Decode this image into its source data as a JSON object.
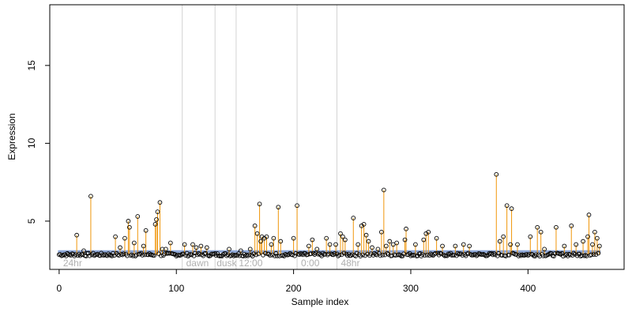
{
  "chart_data": {
    "type": "scatter",
    "xlabel": "Sample index",
    "ylabel": "Expression",
    "xlim": [
      -8,
      482
    ],
    "ylim": [
      1.9,
      18.9
    ],
    "x_ticks": [
      0,
      100,
      200,
      300,
      400
    ],
    "y_ticks": [
      5,
      10,
      15
    ],
    "baseline": 2.85,
    "threshold": 3.05,
    "colors": {
      "baseline_band": "#8fa8d8",
      "spike": "#f0960a",
      "boundary": "#d3d3d3",
      "segment_label": "#b0b0b0"
    },
    "segments": [
      {
        "label": "24hr",
        "x": 2
      },
      {
        "label": "dawn",
        "x": 107
      },
      {
        "label": "dusk",
        "x": 133
      },
      {
        "label": "12:00",
        "x": 152
      },
      {
        "label": "0:00",
        "x": 205
      },
      {
        "label": "48hr",
        "x": 239
      }
    ],
    "boundaries": [
      105,
      133,
      151,
      203,
      237
    ],
    "peaks": [
      {
        "x": 15,
        "y": 4.1
      },
      {
        "x": 21,
        "y": 3.1
      },
      {
        "x": 27,
        "y": 6.6
      },
      {
        "x": 48,
        "y": 4.0
      },
      {
        "x": 52,
        "y": 3.3
      },
      {
        "x": 56,
        "y": 3.9
      },
      {
        "x": 59,
        "y": 5.0
      },
      {
        "x": 60,
        "y": 4.6
      },
      {
        "x": 64,
        "y": 3.6
      },
      {
        "x": 67,
        "y": 5.3
      },
      {
        "x": 72,
        "y": 3.4
      },
      {
        "x": 74,
        "y": 4.4
      },
      {
        "x": 82,
        "y": 4.8
      },
      {
        "x": 83,
        "y": 5.1
      },
      {
        "x": 84,
        "y": 5.6
      },
      {
        "x": 86,
        "y": 6.2
      },
      {
        "x": 88,
        "y": 3.2
      },
      {
        "x": 91,
        "y": 3.2
      },
      {
        "x": 95,
        "y": 3.6
      },
      {
        "x": 107,
        "y": 3.5
      },
      {
        "x": 114,
        "y": 3.5
      },
      {
        "x": 117,
        "y": 3.3
      },
      {
        "x": 121,
        "y": 3.4
      },
      {
        "x": 126,
        "y": 3.3
      },
      {
        "x": 145,
        "y": 3.2
      },
      {
        "x": 155,
        "y": 3.1
      },
      {
        "x": 163,
        "y": 3.2
      },
      {
        "x": 167,
        "y": 4.7
      },
      {
        "x": 169,
        "y": 4.2
      },
      {
        "x": 171,
        "y": 6.1
      },
      {
        "x": 172,
        "y": 3.7
      },
      {
        "x": 173,
        "y": 4.0
      },
      {
        "x": 175,
        "y": 3.9
      },
      {
        "x": 177,
        "y": 4.0
      },
      {
        "x": 181,
        "y": 3.5
      },
      {
        "x": 183,
        "y": 3.9
      },
      {
        "x": 187,
        "y": 5.9
      },
      {
        "x": 189,
        "y": 3.7
      },
      {
        "x": 200,
        "y": 3.9
      },
      {
        "x": 203,
        "y": 6.0
      },
      {
        "x": 213,
        "y": 3.4
      },
      {
        "x": 216,
        "y": 3.8
      },
      {
        "x": 220,
        "y": 3.2
      },
      {
        "x": 228,
        "y": 3.9
      },
      {
        "x": 231,
        "y": 3.5
      },
      {
        "x": 236,
        "y": 3.5
      },
      {
        "x": 240,
        "y": 4.2
      },
      {
        "x": 242,
        "y": 4.0
      },
      {
        "x": 244,
        "y": 3.8
      },
      {
        "x": 251,
        "y": 5.2
      },
      {
        "x": 255,
        "y": 3.5
      },
      {
        "x": 258,
        "y": 4.7
      },
      {
        "x": 260,
        "y": 4.8
      },
      {
        "x": 262,
        "y": 4.1
      },
      {
        "x": 264,
        "y": 3.7
      },
      {
        "x": 267,
        "y": 3.3
      },
      {
        "x": 272,
        "y": 3.2
      },
      {
        "x": 275,
        "y": 4.3
      },
      {
        "x": 277,
        "y": 7.0
      },
      {
        "x": 279,
        "y": 3.4
      },
      {
        "x": 282,
        "y": 3.7
      },
      {
        "x": 285,
        "y": 3.5
      },
      {
        "x": 288,
        "y": 3.6
      },
      {
        "x": 295,
        "y": 3.8
      },
      {
        "x": 296,
        "y": 4.5
      },
      {
        "x": 304,
        "y": 3.5
      },
      {
        "x": 311,
        "y": 3.8
      },
      {
        "x": 313,
        "y": 4.2
      },
      {
        "x": 315,
        "y": 4.3
      },
      {
        "x": 322,
        "y": 3.9
      },
      {
        "x": 327,
        "y": 3.4
      },
      {
        "x": 338,
        "y": 3.4
      },
      {
        "x": 345,
        "y": 3.5
      },
      {
        "x": 350,
        "y": 3.4
      },
      {
        "x": 373,
        "y": 8.0
      },
      {
        "x": 376,
        "y": 3.7
      },
      {
        "x": 379,
        "y": 4.0
      },
      {
        "x": 382,
        "y": 6.0
      },
      {
        "x": 385,
        "y": 3.5
      },
      {
        "x": 386,
        "y": 5.8
      },
      {
        "x": 391,
        "y": 3.5
      },
      {
        "x": 402,
        "y": 4.0
      },
      {
        "x": 408,
        "y": 4.6
      },
      {
        "x": 411,
        "y": 4.3
      },
      {
        "x": 414,
        "y": 3.2
      },
      {
        "x": 424,
        "y": 4.6
      },
      {
        "x": 431,
        "y": 3.4
      },
      {
        "x": 437,
        "y": 4.7
      },
      {
        "x": 441,
        "y": 3.5
      },
      {
        "x": 447,
        "y": 3.7
      },
      {
        "x": 451,
        "y": 4.0
      },
      {
        "x": 452,
        "y": 5.4
      },
      {
        "x": 455,
        "y": 3.5
      },
      {
        "x": 457,
        "y": 4.3
      },
      {
        "x": 459,
        "y": 3.9
      },
      {
        "x": 461,
        "y": 3.4
      }
    ]
  }
}
